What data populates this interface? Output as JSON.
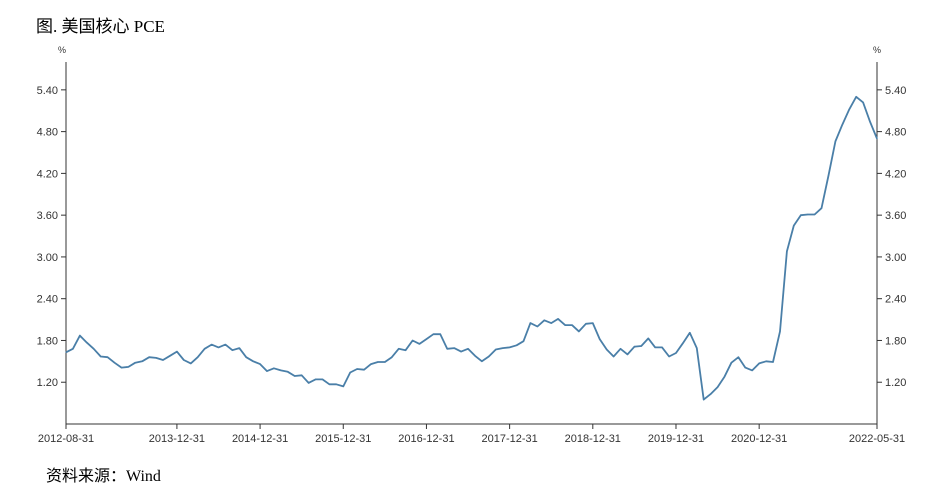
{
  "title": "图. 美国核心 PCE",
  "source": "资料来源：Wind",
  "chart_data": {
    "type": "line",
    "unit_left": "%",
    "unit_right": "%",
    "ylim": [
      0.6,
      5.8
    ],
    "yticks": [
      "5.40",
      "4.80",
      "4.20",
      "3.60",
      "3.00",
      "2.40",
      "1.80",
      "1.20"
    ],
    "xticks": [
      "2012-08-31",
      "2013-12-31",
      "2014-12-31",
      "2015-12-31",
      "2016-12-31",
      "2017-12-31",
      "2018-12-31",
      "2019-12-31",
      "2020-12-31",
      "2022-05-31"
    ],
    "x_start": "2012-08",
    "x_end": "2022-05",
    "grid": false,
    "series": [
      {
        "color": "#4a7fa8",
        "values": [
          1.63,
          1.68,
          1.87,
          1.77,
          1.68,
          1.57,
          1.56,
          1.48,
          1.41,
          1.42,
          1.48,
          1.5,
          1.56,
          1.55,
          1.52,
          1.58,
          1.64,
          1.52,
          1.47,
          1.56,
          1.68,
          1.74,
          1.7,
          1.74,
          1.66,
          1.69,
          1.56,
          1.5,
          1.46,
          1.36,
          1.4,
          1.37,
          1.35,
          1.29,
          1.3,
          1.19,
          1.24,
          1.24,
          1.17,
          1.17,
          1.14,
          1.34,
          1.39,
          1.38,
          1.46,
          1.49,
          1.49,
          1.56,
          1.68,
          1.66,
          1.8,
          1.75,
          1.82,
          1.89,
          1.89,
          1.68,
          1.69,
          1.64,
          1.68,
          1.58,
          1.5,
          1.57,
          1.67,
          1.69,
          1.7,
          1.73,
          1.79,
          2.05,
          2.0,
          2.09,
          2.05,
          2.11,
          2.02,
          2.02,
          1.93,
          2.04,
          2.05,
          1.82,
          1.67,
          1.57,
          1.68,
          1.6,
          1.71,
          1.72,
          1.83,
          1.7,
          1.7,
          1.57,
          1.62,
          1.76,
          1.91,
          1.69,
          0.95,
          1.03,
          1.13,
          1.28,
          1.48,
          1.56,
          1.41,
          1.37,
          1.47,
          1.5,
          1.49,
          1.93,
          3.08,
          3.45,
          3.6,
          3.61,
          3.61,
          3.7,
          4.17,
          4.66,
          4.9,
          5.12,
          5.3,
          5.22,
          4.94,
          4.7
        ]
      }
    ]
  }
}
